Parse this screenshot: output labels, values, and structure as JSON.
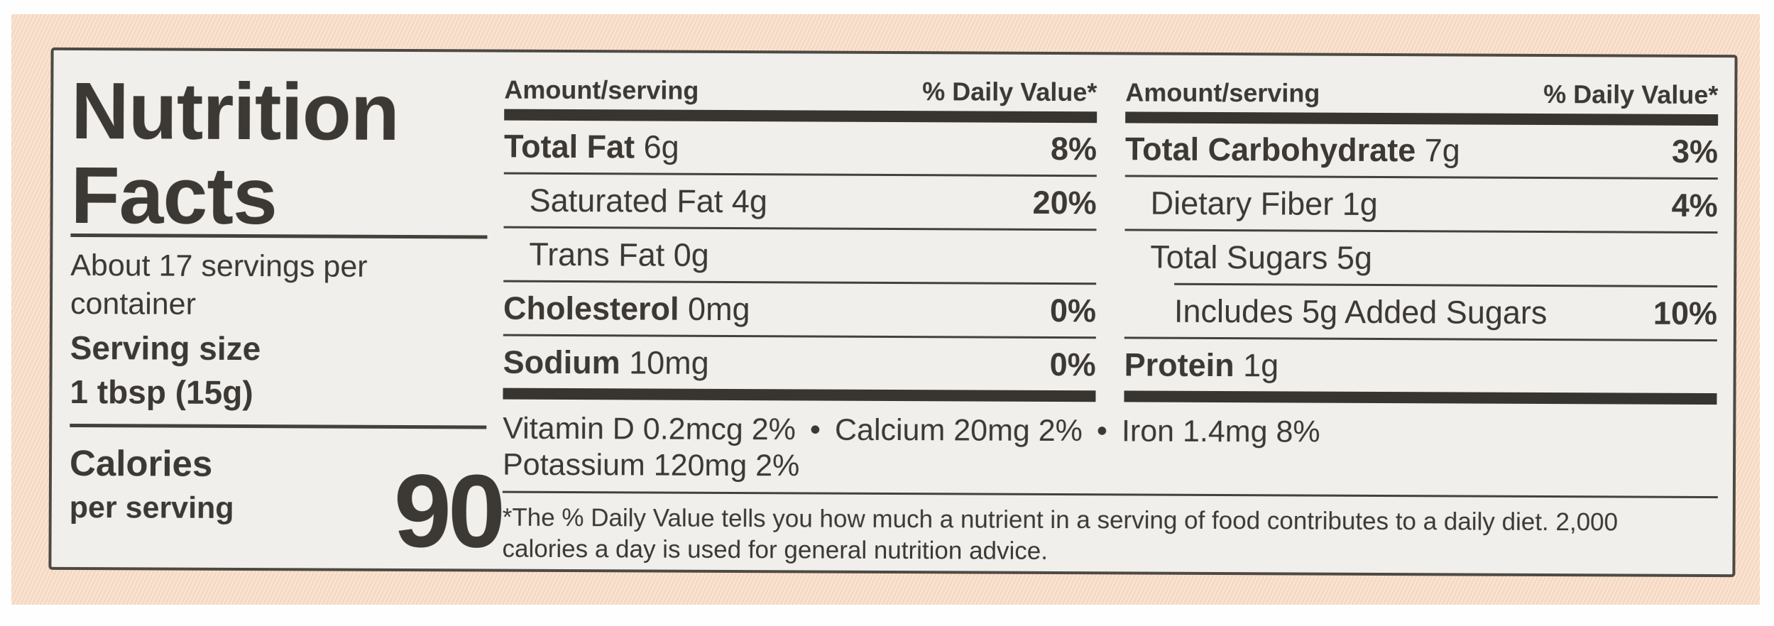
{
  "theme": {
    "backdrop": "#f7dcc7",
    "label_bg": "#f0efeb",
    "ink": "#3c3834",
    "rule": "#45403a",
    "bar": "#38342f"
  },
  "label": {
    "title_line1": "Nutrition",
    "title_line2": "Facts",
    "servings_per_container": "About 17 servings per container",
    "serving_size_label": "Serving size",
    "serving_size_value": "1 tbsp (15g)",
    "calories_label": "Calories",
    "calories_sublabel": "per serving",
    "calories_value": "90"
  },
  "columns": [
    {
      "amount_header": "Amount/serving",
      "dv_header": "% Daily Value*",
      "rows": [
        {
          "bold": "Total Fat",
          "rest": " 6g",
          "dv": "8%"
        },
        {
          "bold": "",
          "rest": "Saturated Fat 4g",
          "dv": "20%"
        },
        {
          "bold": "",
          "rest": "Trans Fat 0g",
          "dv": ""
        },
        {
          "bold": "Cholesterol",
          "rest": " 0mg",
          "dv": "0%"
        },
        {
          "bold": "Sodium",
          "rest": " 10mg",
          "dv": "0%"
        }
      ]
    },
    {
      "amount_header": "Amount/serving",
      "dv_header": "% Daily Value*",
      "rows": [
        {
          "bold": "Total Carbohydrate",
          "rest": " 7g",
          "dv": "3%"
        },
        {
          "bold": "",
          "rest": "Dietary Fiber 1g",
          "dv": "4%"
        },
        {
          "bold": "",
          "rest": "Total Sugars 5g",
          "dv": ""
        },
        {
          "bold": "",
          "rest": "Includes 5g Added Sugars",
          "dv": "10%"
        },
        {
          "bold": "Protein",
          "rest": " 1g",
          "dv": ""
        }
      ]
    }
  ],
  "micronutrients": {
    "items": [
      "Vitamin D 0.2mcg 2%",
      "Calcium 20mg 2%",
      "Iron 1.4mg 8%"
    ],
    "bullet": "•",
    "line2": "Potassium 120mg 2%"
  },
  "footnote": {
    "line1": "*The % Daily Value tells you how much a nutrient in a serving of food contributes to a daily diet. 2,000",
    "line2": "calories a day is used for general nutrition advice."
  }
}
